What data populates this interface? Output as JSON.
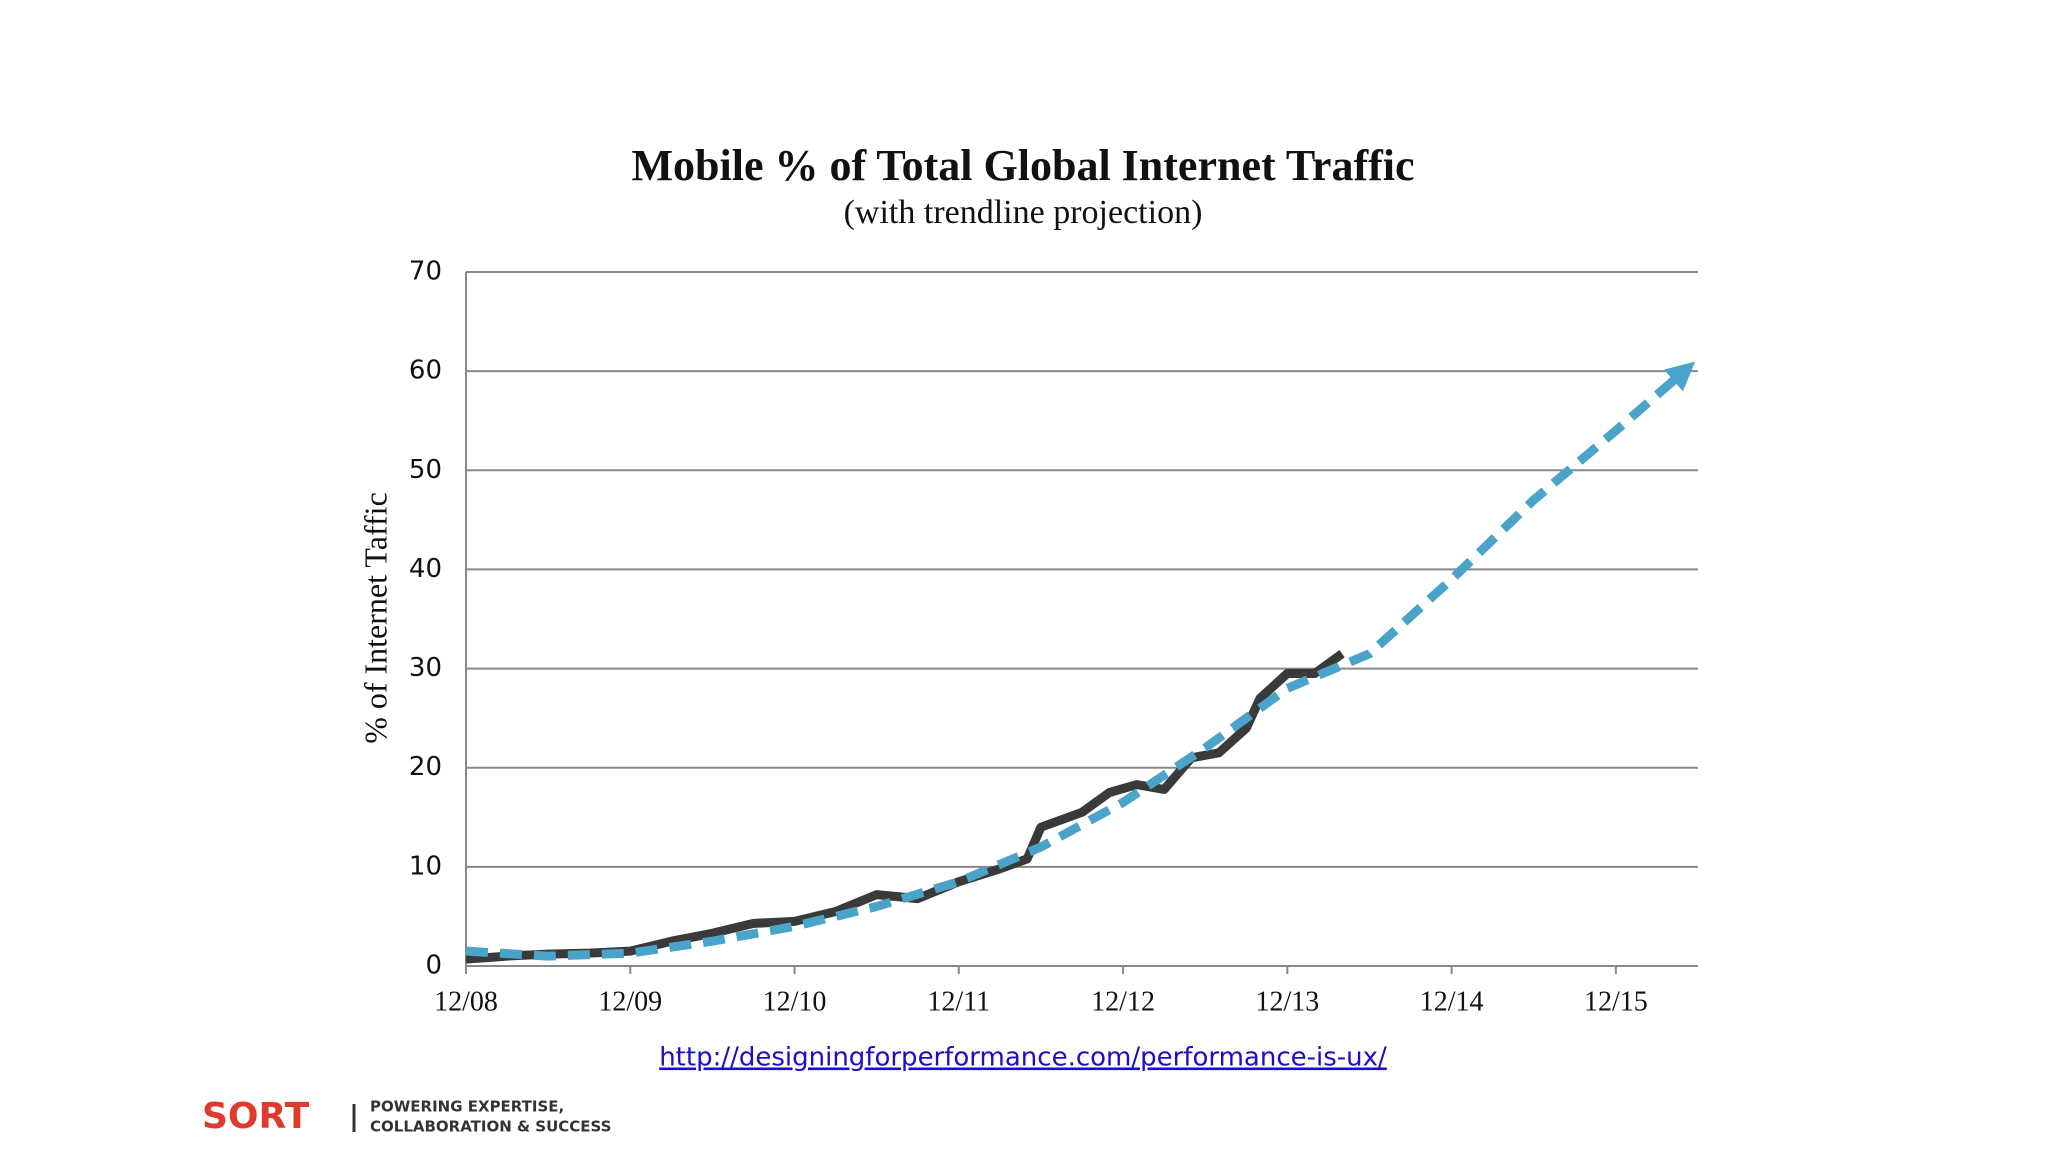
{
  "chart_data": {
    "type": "line",
    "title": "Mobile % of Total Global Internet Traffic",
    "subtitle": "(with trendline projection)",
    "y_label": "% of Internet Taffic",
    "xlim": [
      "2008-12",
      "2016-06"
    ],
    "xticks": [
      {
        "value": "2008-12",
        "label": "12/08"
      },
      {
        "value": "2009-12",
        "label": "12/09"
      },
      {
        "value": "2010-12",
        "label": "12/10"
      },
      {
        "value": "2011-12",
        "label": "12/11"
      },
      {
        "value": "2012-12",
        "label": "12/12"
      },
      {
        "value": "2013-12",
        "label": "12/13"
      },
      {
        "value": "2014-12",
        "label": "12/14"
      },
      {
        "value": "2015-12",
        "label": "12/15"
      }
    ],
    "ylim": [
      0,
      70
    ],
    "yticks": [
      0,
      10,
      20,
      30,
      40,
      50,
      60,
      70
    ],
    "grid": true,
    "series": [
      {
        "color": "#3a3a3a",
        "dashed": false,
        "x": [
          "2008-12",
          "2009-03",
          "2009-06",
          "2009-09",
          "2009-12",
          "2010-03",
          "2010-06",
          "2010-09",
          "2010-12",
          "2011-03",
          "2011-06",
          "2011-09",
          "2011-12",
          "2012-03",
          "2012-05",
          "2012-06",
          "2012-09",
          "2012-11",
          "2013-01",
          "2013-03",
          "2013-05",
          "2013-07",
          "2013-09",
          "2013-10",
          "2013-12",
          "2014-02",
          "2014-04"
        ],
        "values": [
          0.7,
          1,
          1.2,
          1.3,
          1.5,
          2.5,
          3.3,
          4.3,
          4.5,
          5.5,
          7.2,
          6.8,
          8.5,
          9.8,
          10.8,
          14,
          15.5,
          17.5,
          18.3,
          17.8,
          21,
          21.5,
          24,
          27,
          29.5,
          29.5,
          31.5
        ]
      },
      {
        "color": "#4aa3c8",
        "dashed": true,
        "x": [
          "2008-12",
          "2009-06",
          "2009-12",
          "2010-06",
          "2010-12",
          "2011-06",
          "2011-12",
          "2012-06",
          "2012-12",
          "2013-06",
          "2013-12",
          "2014-06",
          "2014-12",
          "2015-06",
          "2015-12",
          "2016-05"
        ],
        "values": [
          1.5,
          1,
          1.3,
          2.5,
          4,
          6,
          8.5,
          12,
          16.5,
          22,
          28,
          31.5,
          39,
          47,
          54,
          60
        ]
      }
    ]
  },
  "link": "http://designingforperformance.com/performance-is-ux/",
  "footer": {
    "logo": "SORT",
    "tagline_1": "POWERING EXPERTISE,",
    "tagline_2": "COLLABORATION & SUCCESS"
  }
}
